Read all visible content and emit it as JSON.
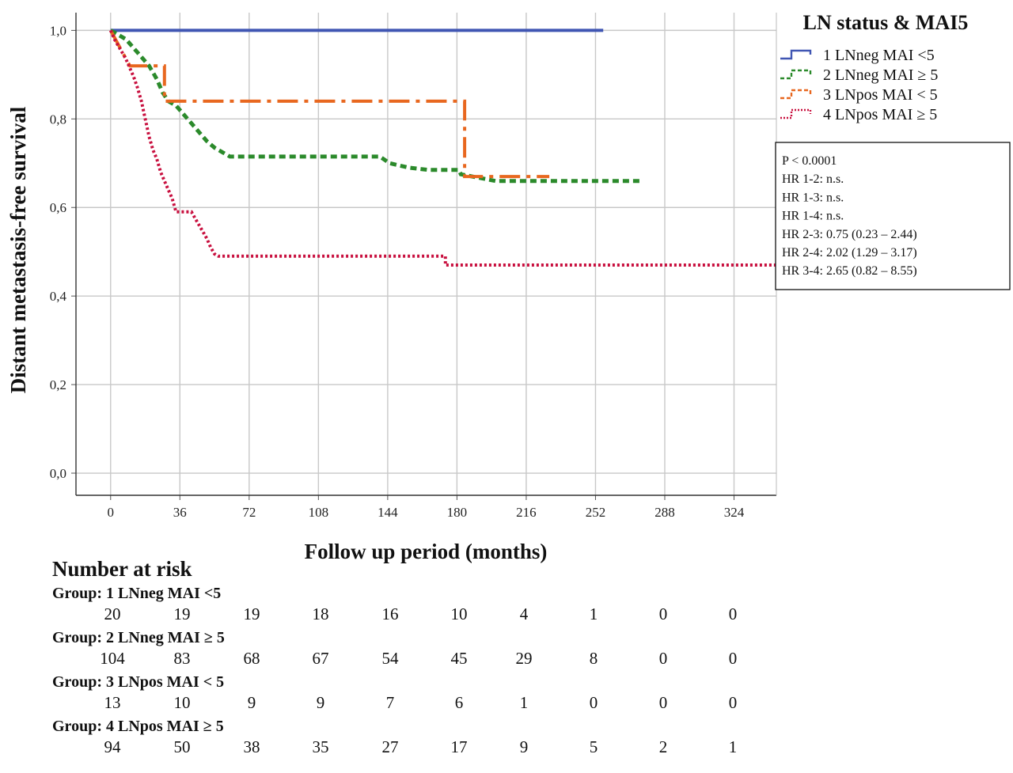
{
  "chart_data": {
    "type": "line",
    "subtype": "kaplan-meier",
    "ylabel": "Distant metastasis-free survival",
    "xlabel": "Follow up period (months)",
    "x_ticks": [
      "0",
      "36",
      "72",
      "108",
      "144",
      "180",
      "216",
      "252",
      "288",
      "324"
    ],
    "y_ticks": [
      "0,0",
      "0,2",
      "0,4",
      "0,6",
      "0,8",
      "1,0"
    ],
    "xlim": [
      -18,
      346
    ],
    "ylim": [
      -0.05,
      1.04
    ],
    "grid": true,
    "legend": {
      "title": "LN status & MAI5",
      "placement": "top-right, outside plot"
    },
    "series": [
      {
        "name": "1 LNneg MAI <5",
        "color": "#4056b3",
        "style": "solid",
        "points": [
          [
            0,
            1.0
          ],
          [
            256,
            1.0
          ]
        ]
      },
      {
        "name": "2 LNneg MAI ≥ 5",
        "color": "#2b8a2b",
        "style": "dashed",
        "points": [
          [
            0,
            1.0
          ],
          [
            4,
            0.99
          ],
          [
            8,
            0.98
          ],
          [
            12,
            0.96
          ],
          [
            16,
            0.94
          ],
          [
            20,
            0.92
          ],
          [
            24,
            0.89
          ],
          [
            27,
            0.86
          ],
          [
            30,
            0.84
          ],
          [
            34,
            0.83
          ],
          [
            38,
            0.81
          ],
          [
            42,
            0.79
          ],
          [
            46,
            0.77
          ],
          [
            50,
            0.75
          ],
          [
            54,
            0.735
          ],
          [
            58,
            0.725
          ],
          [
            62,
            0.715
          ],
          [
            140,
            0.715
          ],
          [
            145,
            0.7
          ],
          [
            155,
            0.69
          ],
          [
            165,
            0.685
          ],
          [
            181,
            0.685
          ],
          [
            182,
            0.675
          ],
          [
            200,
            0.66
          ],
          [
            275,
            0.66
          ]
        ]
      },
      {
        "name": "3 LNpos MAI < 5",
        "color": "#e8671f",
        "style": "dash-dot",
        "points": [
          [
            0,
            1.0
          ],
          [
            10,
            0.92
          ],
          [
            28,
            0.92
          ],
          [
            28,
            0.84
          ],
          [
            184,
            0.84
          ],
          [
            184,
            0.67
          ],
          [
            228,
            0.67
          ]
        ]
      },
      {
        "name": "4 LNpos MAI ≥ 5",
        "color": "#c8103f",
        "style": "dotted",
        "points": [
          [
            0,
            1.0
          ],
          [
            2,
            0.98
          ],
          [
            4,
            0.965
          ],
          [
            6,
            0.95
          ],
          [
            8,
            0.935
          ],
          [
            10,
            0.915
          ],
          [
            12,
            0.895
          ],
          [
            14,
            0.87
          ],
          [
            16,
            0.84
          ],
          [
            18,
            0.8
          ],
          [
            20,
            0.76
          ],
          [
            22,
            0.73
          ],
          [
            24,
            0.71
          ],
          [
            26,
            0.68
          ],
          [
            28,
            0.66
          ],
          [
            30,
            0.64
          ],
          [
            32,
            0.62
          ],
          [
            34,
            0.59
          ],
          [
            42,
            0.59
          ],
          [
            44,
            0.575
          ],
          [
            46,
            0.56
          ],
          [
            48,
            0.545
          ],
          [
            50,
            0.53
          ],
          [
            52,
            0.51
          ],
          [
            54,
            0.495
          ],
          [
            56,
            0.49
          ],
          [
            174,
            0.49
          ],
          [
            174,
            0.47
          ],
          [
            346,
            0.47
          ]
        ]
      }
    ],
    "stats_box": [
      "P < 0.0001",
      "HR 1-2: n.s.",
      "HR 1-3: n.s.",
      "HR 1-4: n.s.",
      "HR 2-3: 0.75 (0.23 – 2.44)",
      "HR 2-4: 2.02 (1.29 – 3.17)",
      "HR 3-4: 2.65 (0.82 – 8.55)"
    ],
    "risk_table": {
      "title": "Number at risk",
      "groups": [
        {
          "label": "Group: 1 LNneg MAI <5",
          "values": [
            "20",
            "19",
            "19",
            "18",
            "16",
            "10",
            "4",
            "1",
            "0",
            "0"
          ]
        },
        {
          "label": "Group: 2 LNneg MAI ≥ 5",
          "values": [
            "104",
            "83",
            "68",
            "67",
            "54",
            "45",
            "29",
            "8",
            "0",
            "0"
          ]
        },
        {
          "label": "Group: 3 LNpos MAI < 5",
          "values": [
            "13",
            "10",
            "9",
            "9",
            "7",
            "6",
            "1",
            "0",
            "0",
            "0"
          ]
        },
        {
          "label": "Group: 4 LNpos MAI ≥ 5",
          "values": [
            "94",
            "50",
            "38",
            "35",
            "27",
            "17",
            "9",
            "5",
            "2",
            "1"
          ]
        }
      ]
    }
  }
}
